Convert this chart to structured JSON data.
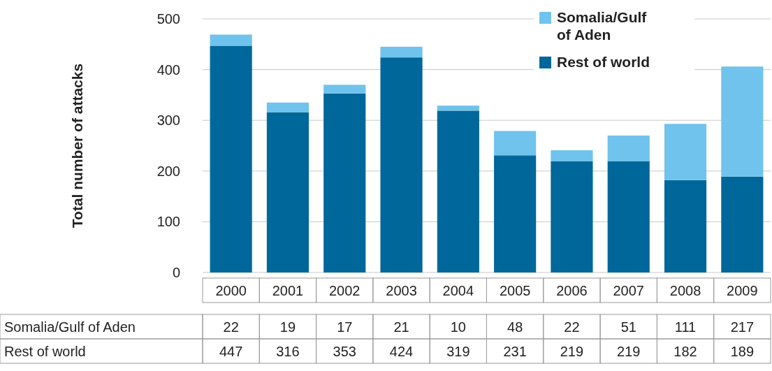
{
  "chart_data": {
    "type": "bar",
    "stacked": true,
    "ylabel": "Total number of attacks",
    "categories": [
      "2000",
      "2001",
      "2002",
      "2003",
      "2004",
      "2005",
      "2006",
      "2007",
      "2008",
      "2009"
    ],
    "series": [
      {
        "name": "Rest of world",
        "color": "#00679a",
        "values": [
          447,
          316,
          353,
          424,
          319,
          231,
          219,
          219,
          182,
          189
        ]
      },
      {
        "name": "Somalia/Gulf of Aden",
        "color": "#6fc3ec",
        "values": [
          22,
          19,
          17,
          21,
          10,
          48,
          22,
          51,
          111,
          217
        ]
      }
    ],
    "ylim": [
      0,
      500
    ],
    "yticks": [
      0,
      100,
      200,
      300,
      400,
      500
    ],
    "grid": "y",
    "legend": "top right",
    "data_labels": true
  }
}
